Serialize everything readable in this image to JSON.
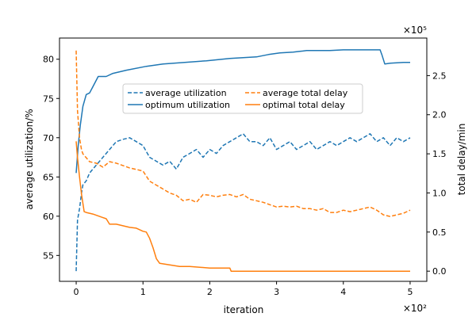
{
  "chart_data": {
    "type": "line",
    "title": "",
    "xlabel": "iteration",
    "ylabel_left": "average utilization/%",
    "ylabel_right": "total delay/min",
    "x_multiplier_label": "×10²",
    "y_right_multiplier_label": "×10⁵",
    "xlim": [
      -0.25,
      5.25
    ],
    "ylim_left": [
      51.7,
      82.7
    ],
    "ylim_right": [
      -0.13,
      2.98
    ],
    "x_ticks": [
      0,
      1,
      2,
      3,
      4,
      5
    ],
    "y_left_ticks": [
      55,
      60,
      65,
      70,
      75,
      80
    ],
    "y_right_ticks": [
      0.0,
      0.5,
      1.0,
      1.5,
      2.0,
      2.5
    ],
    "x_tick_labels": [
      "0",
      "1",
      "2",
      "3",
      "4",
      "5"
    ],
    "y_left_tick_labels": [
      "55",
      "60",
      "65",
      "70",
      "75",
      "80"
    ],
    "y_right_tick_labels": [
      "0.0",
      "0.5",
      "1.0",
      "1.5",
      "2.0",
      "2.5"
    ],
    "grid": false,
    "legend_position": "upper-center",
    "series": [
      {
        "name": "average utilization",
        "axis": "left",
        "color": "#1f77b4",
        "style": "dashed",
        "x": [
          0,
          0.02,
          0.05,
          0.08,
          0.1,
          0.15,
          0.2,
          0.3,
          0.4,
          0.5,
          0.6,
          0.7,
          0.8,
          0.9,
          1.0,
          1.1,
          1.2,
          1.3,
          1.4,
          1.5,
          1.6,
          1.7,
          1.8,
          1.9,
          2.0,
          2.1,
          2.2,
          2.3,
          2.4,
          2.5,
          2.6,
          2.7,
          2.8,
          2.9,
          3.0,
          3.1,
          3.2,
          3.3,
          3.4,
          3.5,
          3.6,
          3.7,
          3.8,
          3.9,
          4.0,
          4.1,
          4.2,
          4.3,
          4.4,
          4.5,
          4.6,
          4.7,
          4.8,
          4.9,
          5.0
        ],
        "y": [
          53.0,
          59.5,
          61.0,
          63.0,
          64.0,
          64.5,
          65.5,
          66.5,
          67.5,
          68.5,
          69.5,
          69.8,
          70.0,
          69.5,
          69.0,
          67.5,
          67.0,
          66.5,
          67.0,
          66.0,
          67.5,
          68.0,
          68.5,
          67.5,
          68.5,
          68.0,
          69.0,
          69.5,
          70.0,
          70.5,
          69.5,
          69.5,
          69.0,
          70.0,
          68.5,
          69.0,
          69.5,
          68.5,
          69.0,
          69.5,
          68.5,
          69.0,
          69.5,
          69.0,
          69.5,
          70.0,
          69.5,
          70.0,
          70.5,
          69.5,
          70.0,
          69.0,
          70.0,
          69.5,
          70.0
        ]
      },
      {
        "name": "optimum utilization",
        "axis": "left",
        "color": "#1f77b4",
        "style": "solid",
        "x": [
          0,
          0.03,
          0.06,
          0.1,
          0.15,
          0.2,
          0.25,
          0.33,
          0.45,
          0.55,
          0.75,
          1.05,
          1.3,
          1.95,
          2.3,
          2.7,
          2.88,
          3.05,
          3.25,
          3.35,
          3.45,
          3.6,
          3.8,
          4.0,
          4.1,
          4.2,
          4.55,
          4.58,
          4.62,
          4.7,
          4.9,
          5.0
        ],
        "y": [
          65.5,
          69.0,
          71.5,
          74.0,
          75.5,
          75.7,
          76.5,
          77.8,
          77.8,
          78.2,
          78.6,
          79.1,
          79.4,
          79.8,
          80.1,
          80.3,
          80.6,
          80.8,
          80.9,
          81.0,
          81.1,
          81.1,
          81.1,
          81.2,
          81.2,
          81.2,
          81.2,
          80.5,
          79.4,
          79.5,
          79.6,
          79.6
        ]
      },
      {
        "name": "average total delay",
        "axis": "right",
        "color": "#ff7f0e",
        "style": "dashed",
        "x": [
          0,
          0.02,
          0.05,
          0.08,
          0.1,
          0.15,
          0.2,
          0.3,
          0.4,
          0.5,
          0.6,
          0.7,
          0.8,
          0.9,
          1.0,
          1.1,
          1.2,
          1.3,
          1.4,
          1.5,
          1.6,
          1.7,
          1.8,
          1.9,
          2.0,
          2.1,
          2.2,
          2.3,
          2.4,
          2.5,
          2.6,
          2.7,
          2.8,
          2.9,
          3.0,
          3.1,
          3.2,
          3.3,
          3.4,
          3.5,
          3.6,
          3.7,
          3.8,
          3.9,
          4.0,
          4.1,
          4.2,
          4.3,
          4.4,
          4.5,
          4.6,
          4.7,
          4.8,
          4.9,
          5.0
        ],
        "y": [
          2.82,
          2.05,
          1.7,
          1.55,
          1.5,
          1.45,
          1.4,
          1.38,
          1.33,
          1.4,
          1.38,
          1.35,
          1.32,
          1.3,
          1.28,
          1.15,
          1.1,
          1.05,
          1.0,
          0.97,
          0.9,
          0.92,
          0.88,
          0.98,
          0.97,
          0.95,
          0.97,
          0.98,
          0.95,
          0.98,
          0.92,
          0.9,
          0.88,
          0.85,
          0.82,
          0.83,
          0.82,
          0.83,
          0.8,
          0.8,
          0.78,
          0.8,
          0.75,
          0.75,
          0.78,
          0.76,
          0.78,
          0.8,
          0.82,
          0.78,
          0.72,
          0.7,
          0.72,
          0.74,
          0.78
        ]
      },
      {
        "name": "optimal total delay",
        "axis": "right",
        "color": "#ff7f0e",
        "style": "solid",
        "x": [
          0,
          0.02,
          0.05,
          0.08,
          0.12,
          0.15,
          0.25,
          0.35,
          0.45,
          0.5,
          0.6,
          0.7,
          0.8,
          0.9,
          1.0,
          1.05,
          1.1,
          1.15,
          1.2,
          1.25,
          1.4,
          1.55,
          1.6,
          1.7,
          2.0,
          2.1,
          2.3,
          2.32,
          3.0,
          4.0,
          5.0
        ],
        "y": [
          1.66,
          1.45,
          1.2,
          0.98,
          0.76,
          0.75,
          0.73,
          0.7,
          0.67,
          0.6,
          0.6,
          0.58,
          0.56,
          0.55,
          0.51,
          0.5,
          0.42,
          0.3,
          0.16,
          0.1,
          0.08,
          0.06,
          0.06,
          0.06,
          0.04,
          0.04,
          0.04,
          0.0,
          0.0,
          0.0,
          0.0
        ]
      }
    ]
  }
}
